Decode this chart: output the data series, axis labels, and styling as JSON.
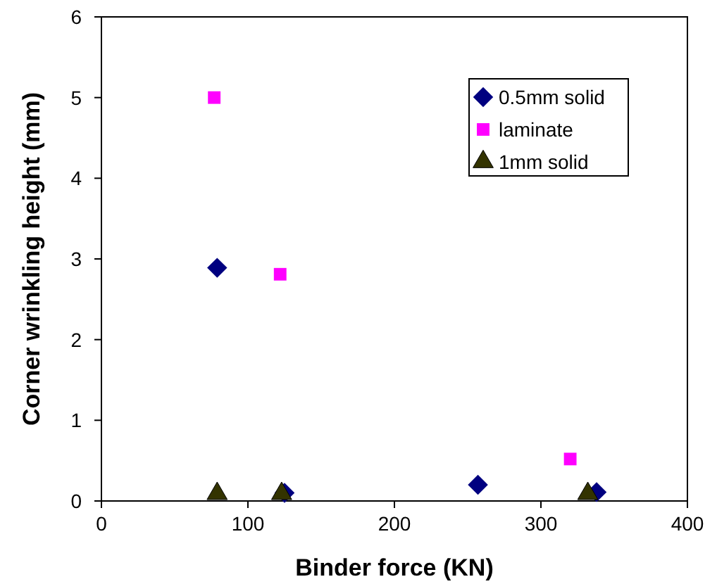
{
  "chart_data": {
    "type": "scatter",
    "xlabel": "Binder force (KN)",
    "ylabel": "Corner wrinkling height (mm)",
    "xlim": [
      0,
      400
    ],
    "xticks": [
      0,
      100,
      200,
      300,
      400
    ],
    "ylim": [
      0,
      6
    ],
    "yticks": [
      0,
      1,
      2,
      3,
      4,
      5,
      6
    ],
    "grid": false,
    "legend": "top right",
    "series": [
      {
        "name": "0.5mm solid",
        "color": "#000080",
        "marker": "diamond",
        "x": [
          79,
          125,
          257,
          338
        ],
        "values": [
          2.89,
          0.1,
          0.2,
          0.11
        ]
      },
      {
        "name": "laminate",
        "color": "#ff00ff",
        "marker": "square",
        "x": [
          77,
          122,
          320
        ],
        "values": [
          5.0,
          2.81,
          0.52
        ]
      },
      {
        "name": "1mm solid",
        "color": "#333300",
        "marker": "triangle",
        "x": [
          79,
          123,
          332
        ],
        "values": [
          0.09,
          0.09,
          0.09
        ]
      }
    ]
  }
}
